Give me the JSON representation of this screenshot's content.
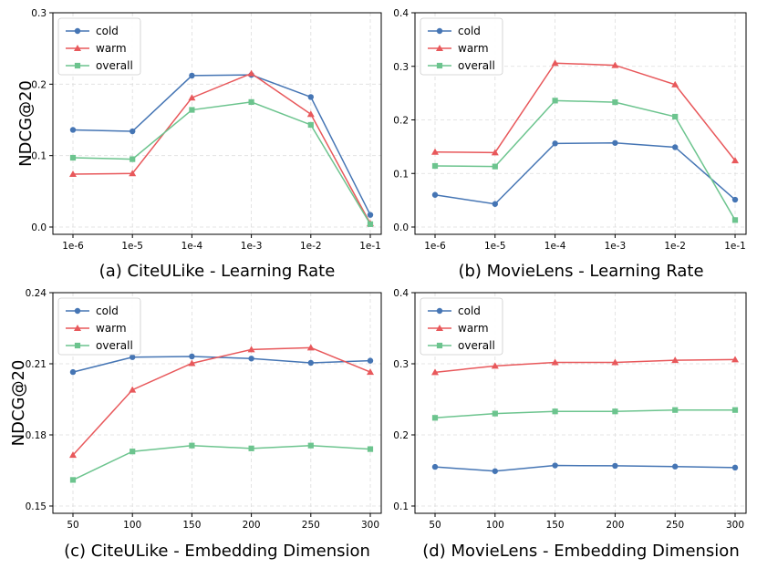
{
  "colors": {
    "cold": "#4575b4",
    "warm": "#e8585b",
    "overall": "#6cc48e"
  },
  "chart_data": [
    {
      "type": "line",
      "title": "(a) CiteULike - Learning Rate",
      "xlabel": "",
      "ylabel": "NDCG@20",
      "categories": [
        "1e-6",
        "1e-5",
        "1e-4",
        "1e-3",
        "1e-2",
        "1e-1"
      ],
      "ylim": [
        0.0,
        0.3
      ],
      "yticks": [
        "0.0",
        "0.1",
        "0.2",
        "0.3"
      ],
      "legend": "top-left",
      "grid": true,
      "series": [
        {
          "name": "cold",
          "marker": "circle",
          "values": [
            0.136,
            0.134,
            0.212,
            0.213,
            0.182,
            0.017
          ]
        },
        {
          "name": "warm",
          "marker": "triangle",
          "values": [
            0.074,
            0.075,
            0.181,
            0.215,
            0.158,
            0.005
          ]
        },
        {
          "name": "overall",
          "marker": "square",
          "values": [
            0.097,
            0.095,
            0.164,
            0.175,
            0.143,
            0.004
          ]
        }
      ]
    },
    {
      "type": "line",
      "title": "(b) MovieLens - Learning Rate",
      "xlabel": "",
      "ylabel": "",
      "categories": [
        "1e-6",
        "1e-5",
        "1e-4",
        "1e-3",
        "1e-2",
        "1e-1"
      ],
      "ylim": [
        0.0,
        0.4
      ],
      "yticks": [
        "0.0",
        "0.1",
        "0.2",
        "0.3",
        "0.4"
      ],
      "legend": "top-left",
      "grid": true,
      "series": [
        {
          "name": "cold",
          "marker": "circle",
          "values": [
            0.06,
            0.043,
            0.156,
            0.157,
            0.149,
            0.051
          ]
        },
        {
          "name": "warm",
          "marker": "triangle",
          "values": [
            0.14,
            0.139,
            0.306,
            0.302,
            0.266,
            0.124
          ]
        },
        {
          "name": "overall",
          "marker": "square",
          "values": [
            0.114,
            0.113,
            0.236,
            0.233,
            0.206,
            0.013
          ]
        }
      ]
    },
    {
      "type": "line",
      "title": "(c) CiteULike - Embedding Dimension",
      "xlabel": "",
      "ylabel": "NDCG@20",
      "categories": [
        "50",
        "100",
        "150",
        "200",
        "250",
        "300"
      ],
      "ylim": [
        0.15,
        0.24
      ],
      "yticks": [
        "0.15",
        "0.18",
        "0.21",
        "0.24"
      ],
      "legend": "top-left",
      "grid": true,
      "series": [
        {
          "name": "cold",
          "marker": "circle",
          "values": [
            0.2065,
            0.2128,
            0.2131,
            0.2122,
            0.2104,
            0.2113
          ]
        },
        {
          "name": "warm",
          "marker": "triangle",
          "values": [
            0.1715,
            0.199,
            0.2102,
            0.216,
            0.2168,
            0.2065
          ]
        },
        {
          "name": "overall",
          "marker": "square",
          "values": [
            0.161,
            0.173,
            0.1755,
            0.1743,
            0.1755,
            0.174
          ]
        }
      ]
    },
    {
      "type": "line",
      "title": "(d) MovieLens - Embedding Dimension",
      "xlabel": "",
      "ylabel": "",
      "categories": [
        "50",
        "100",
        "150",
        "200",
        "250",
        "300"
      ],
      "ylim": [
        0.1,
        0.4
      ],
      "yticks": [
        "0.1",
        "0.2",
        "0.3",
        "0.4"
      ],
      "legend": "top-left",
      "grid": true,
      "series": [
        {
          "name": "cold",
          "marker": "circle",
          "values": [
            0.155,
            0.149,
            0.157,
            0.1565,
            0.1555,
            0.154
          ]
        },
        {
          "name": "warm",
          "marker": "triangle",
          "values": [
            0.288,
            0.297,
            0.302,
            0.302,
            0.305,
            0.306
          ]
        },
        {
          "name": "overall",
          "marker": "square",
          "values": [
            0.224,
            0.23,
            0.233,
            0.233,
            0.235,
            0.235
          ]
        }
      ]
    }
  ]
}
